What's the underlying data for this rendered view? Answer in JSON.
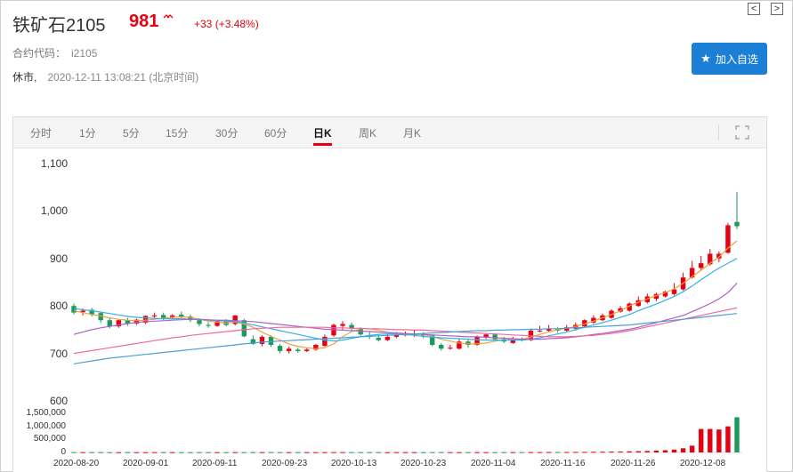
{
  "header": {
    "title": "铁矿石2105",
    "price": "981",
    "price_icon": "up-arrows-icon",
    "change": "+33 (+3.48%)",
    "code_label": "合约代码：",
    "code_value": "i2105",
    "status": "休市,",
    "time": "2020-12-11 13:08:21 (北京时间)",
    "favorite_label": "加入自选",
    "nav_prev": "<",
    "nav_next": ">"
  },
  "tabs": [
    {
      "label": "分时"
    },
    {
      "label": "1分"
    },
    {
      "label": "5分"
    },
    {
      "label": "15分"
    },
    {
      "label": "30分"
    },
    {
      "label": "60分"
    },
    {
      "label": "日K"
    },
    {
      "label": "周K"
    },
    {
      "label": "月K"
    }
  ],
  "colors": {
    "up": "#e60012",
    "down": "#1a9b5a",
    "accent": "#1b7fd6"
  },
  "chart_data": {
    "type": "candlestick",
    "y_ticks": [
      "1,100",
      "1,000",
      "900",
      "800",
      "700",
      "600"
    ],
    "ylim": [
      600,
      1100
    ],
    "volume_ticks": [
      "1,500,000",
      "1,000,000",
      "500,000",
      "0"
    ],
    "volume_lim": [
      0,
      1500000
    ],
    "x_ticks": [
      "2020-08-20",
      "2020-09-01",
      "2020-09-11",
      "2020-09-23",
      "2020-10-13",
      "2020-10-23",
      "2020-11-04",
      "2020-11-16",
      "2020-11-26",
      "2020-12-08"
    ],
    "candles": [
      [
        800,
        786,
        805,
        782
      ],
      [
        787,
        790,
        795,
        780
      ],
      [
        792,
        782,
        796,
        778
      ],
      [
        785,
        770,
        788,
        765
      ],
      [
        770,
        757,
        775,
        753
      ],
      [
        757,
        770,
        772,
        754
      ],
      [
        770,
        763,
        775,
        758
      ],
      [
        763,
        771,
        773,
        760
      ],
      [
        765,
        779,
        780,
        762
      ],
      [
        778,
        780,
        786,
        775
      ],
      [
        781,
        775,
        786,
        770
      ],
      [
        775,
        780,
        783,
        772
      ],
      [
        782,
        778,
        788,
        774
      ],
      [
        778,
        770,
        782,
        766
      ],
      [
        770,
        762,
        774,
        757
      ],
      [
        760,
        758,
        766,
        754
      ],
      [
        758,
        768,
        771,
        756
      ],
      [
        768,
        760,
        772,
        757
      ],
      [
        762,
        780,
        781,
        759
      ],
      [
        770,
        736,
        773,
        734
      ],
      [
        730,
        720,
        738,
        718
      ],
      [
        720,
        735,
        738,
        715
      ],
      [
        735,
        718,
        738,
        714
      ],
      [
        716,
        705,
        720,
        700
      ],
      [
        705,
        710,
        714,
        700
      ],
      [
        708,
        705,
        712,
        701
      ],
      [
        705,
        708,
        712,
        703
      ],
      [
        708,
        718,
        720,
        706
      ],
      [
        716,
        735,
        740,
        714
      ],
      [
        738,
        760,
        763,
        735
      ],
      [
        758,
        762,
        768,
        750
      ],
      [
        760,
        752,
        765,
        748
      ],
      [
        752,
        740,
        755,
        737
      ],
      [
        738,
        735,
        745,
        730
      ],
      [
        733,
        728,
        740,
        725
      ],
      [
        728,
        735,
        742,
        726
      ],
      [
        735,
        740,
        745,
        732
      ],
      [
        738,
        742,
        746,
        736
      ],
      [
        740,
        740,
        748,
        735
      ],
      [
        742,
        738,
        745,
        732
      ],
      [
        738,
        718,
        740,
        715
      ],
      [
        718,
        710,
        722,
        706
      ],
      [
        710,
        712,
        718,
        708
      ],
      [
        710,
        725,
        730,
        708
      ],
      [
        725,
        718,
        730,
        712
      ],
      [
        718,
        735,
        738,
        716
      ],
      [
        733,
        740,
        743,
        730
      ],
      [
        740,
        730,
        742,
        725
      ],
      [
        730,
        725,
        735,
        722
      ],
      [
        722,
        730,
        735,
        720
      ],
      [
        730,
        728,
        734,
        725
      ],
      [
        728,
        748,
        752,
        726
      ],
      [
        748,
        748,
        758,
        745
      ],
      [
        748,
        752,
        760,
        746
      ],
      [
        752,
        748,
        756,
        744
      ],
      [
        748,
        755,
        760,
        746
      ],
      [
        752,
        760,
        765,
        748
      ],
      [
        757,
        770,
        772,
        755
      ],
      [
        765,
        775,
        780,
        762
      ],
      [
        770,
        780,
        784,
        768
      ],
      [
        775,
        790,
        793,
        773
      ],
      [
        788,
        795,
        800,
        786
      ],
      [
        790,
        805,
        808,
        788
      ],
      [
        800,
        812,
        820,
        798
      ],
      [
        808,
        820,
        826,
        805
      ],
      [
        815,
        825,
        828,
        810
      ],
      [
        820,
        830,
        832,
        818
      ],
      [
        825,
        835,
        848,
        822
      ],
      [
        835,
        860,
        870,
        832
      ],
      [
        860,
        880,
        895,
        858
      ],
      [
        880,
        890,
        905,
        876
      ],
      [
        888,
        910,
        920,
        885
      ],
      [
        900,
        910,
        915,
        892
      ],
      [
        912,
        970,
        975,
        910
      ],
      [
        977,
        968,
        1040,
        962
      ]
    ],
    "volumes": [
      12000,
      11000,
      10000,
      10500,
      9800,
      9500,
      9800,
      9000,
      9500,
      10000,
      9600,
      9800,
      9400,
      9200,
      9500,
      10000,
      9800,
      9600,
      10200,
      10500,
      11000,
      10800,
      10500,
      10200,
      9800,
      10000,
      9600,
      9800,
      10500,
      11000,
      11500,
      10800,
      10500,
      10200,
      9800,
      9600,
      10000,
      9800,
      9600,
      10000,
      10500,
      10800,
      10400,
      10200,
      10000,
      10400,
      10200,
      10000,
      10500,
      11000,
      12000,
      13000,
      14000,
      15000,
      16000,
      18000,
      20000,
      22000,
      25000,
      28000,
      32000,
      36000,
      42000,
      48000,
      55000,
      70000,
      85000,
      110000,
      160000,
      260000,
      900000,
      900000,
      880000,
      1000000,
      1350000
    ],
    "ma_series": [
      {
        "color": "#f0a040",
        "values": [
          790,
          786,
          782,
          779,
          775,
          772,
          770,
          769,
          770,
          772,
          774,
          776,
          777,
          776,
          772,
          768,
          766,
          764,
          766,
          762,
          755,
          745,
          736,
          728,
          720,
          715,
          712,
          710,
          712,
          720,
          735,
          746,
          752,
          752,
          749,
          744,
          740,
          739,
          740,
          740,
          736,
          730,
          726,
          722,
          720,
          720,
          722,
          726,
          728,
          730,
          730,
          734,
          740,
          745,
          750,
          753,
          757,
          762,
          768,
          775,
          782,
          790,
          800,
          808,
          815,
          822,
          828,
          836,
          848,
          862,
          875,
          890,
          903,
          922,
          937
        ]
      },
      {
        "color": "#31b2e8",
        "values": [
          795,
          792,
          790,
          787,
          784,
          781,
          778,
          776,
          775,
          774,
          773,
          773,
          773,
          772,
          771,
          770,
          769,
          768,
          767,
          764,
          760,
          756,
          752,
          748,
          744,
          740,
          736,
          732,
          728,
          726,
          728,
          732,
          735,
          738,
          740,
          741,
          741,
          740,
          738,
          736,
          734,
          733,
          732,
          731,
          730,
          729,
          728,
          728,
          728,
          728,
          728,
          730,
          733,
          737,
          741,
          745,
          750,
          755,
          760,
          765,
          770,
          776,
          782,
          790,
          797,
          804,
          812,
          820,
          830,
          842,
          855,
          868,
          880,
          890,
          900
        ]
      },
      {
        "color": "#b060c8",
        "values": [
          740,
          745,
          750,
          754,
          757,
          760,
          763,
          765,
          767,
          768,
          769,
          770,
          771,
          772,
          772,
          771,
          770,
          770,
          769,
          768,
          767,
          765,
          763,
          761,
          759,
          757,
          755,
          753,
          751,
          750,
          749,
          748,
          747,
          746,
          745,
          744,
          743,
          742,
          741,
          740,
          739,
          738,
          737,
          736,
          735,
          735,
          734,
          733,
          732,
          731,
          730,
          730,
          730,
          731,
          732,
          733,
          735,
          737,
          740,
          742,
          745,
          748,
          751,
          755,
          760,
          765,
          770,
          775,
          780,
          788,
          796,
          805,
          815,
          828,
          848
        ]
      },
      {
        "color": "#f06a9a",
        "values": [
          700,
          703,
          706,
          709,
          712,
          715,
          718,
          721,
          724,
          727,
          730,
          733,
          735,
          738,
          740,
          742,
          744,
          746,
          748,
          750,
          752,
          753,
          754,
          755,
          755,
          755,
          755,
          755,
          755,
          754,
          754,
          753,
          753,
          752,
          752,
          751,
          750,
          750,
          749,
          749,
          748,
          747,
          746,
          745,
          744,
          743,
          742,
          741,
          740,
          739,
          738,
          737,
          736,
          735,
          735,
          735,
          736,
          737,
          738,
          740,
          742,
          745,
          748,
          752,
          756,
          760,
          764,
          768,
          772,
          776,
          780,
          784,
          788,
          792,
          796
        ]
      },
      {
        "color": "#4aa0d8",
        "values": [
          678,
          681,
          684,
          687,
          690,
          692,
          694,
          696,
          698,
          700,
          702,
          704,
          706,
          708,
          710,
          712,
          714,
          716,
          718,
          720,
          722,
          724,
          725,
          726,
          727,
          728,
          729,
          730,
          731,
          732,
          733,
          734,
          735,
          736,
          737,
          738,
          739,
          740,
          741,
          742,
          743,
          744,
          745,
          746,
          747,
          748,
          748,
          749,
          749,
          750,
          750,
          751,
          751,
          752,
          752,
          753,
          754,
          755,
          756,
          757,
          758,
          759,
          760,
          762,
          764,
          766,
          768,
          770,
          772,
          774,
          776,
          778,
          780,
          782,
          784
        ]
      }
    ]
  }
}
